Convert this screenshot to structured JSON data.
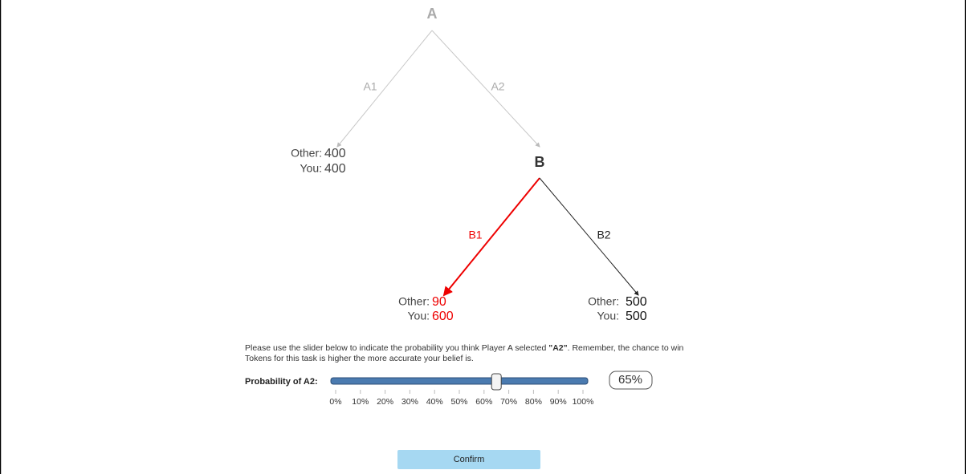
{
  "tree": {
    "nodes": [
      {
        "label": "A"
      },
      {
        "label": "B"
      }
    ],
    "edges": [
      {
        "label": "A1"
      },
      {
        "label": "A2"
      },
      {
        "label": "B1"
      },
      {
        "label": "B2"
      }
    ],
    "payoffs": [
      {
        "other_label": "Other:",
        "other": "400",
        "you_label": "You:",
        "you": "400"
      },
      {
        "other_label": "Other:",
        "other": "90",
        "you_label": "You:",
        "you": "600"
      },
      {
        "other_label": "Other:",
        "other": "500",
        "you_label": "You:",
        "you": "500"
      }
    ]
  },
  "instruction": {
    "line1_before": "Please use the slider below to indicate the probability you think Player A selected ",
    "bold": "\"A2\"",
    "line1_after": ". Remember, the chance to win",
    "line2": "Tokens for this task is higher the more accurate your belief is."
  },
  "slider": {
    "label": "Probability of A2:",
    "value": 65,
    "value_label": "65%",
    "min": 0,
    "max": 100,
    "ticks": [
      {
        "value": 0,
        "label": "0%"
      },
      {
        "value": 10,
        "label": "10%"
      },
      {
        "value": 20,
        "label": "20%"
      },
      {
        "value": 30,
        "label": "30%"
      },
      {
        "value": 40,
        "label": "40%"
      },
      {
        "value": 50,
        "label": "50%"
      },
      {
        "value": 60,
        "label": "60%"
      },
      {
        "value": 70,
        "label": "70%"
      },
      {
        "value": 80,
        "label": "80%"
      },
      {
        "value": 90,
        "label": "90%"
      },
      {
        "value": 100,
        "label": "100%"
      }
    ]
  },
  "button": {
    "label": "Confirm"
  }
}
